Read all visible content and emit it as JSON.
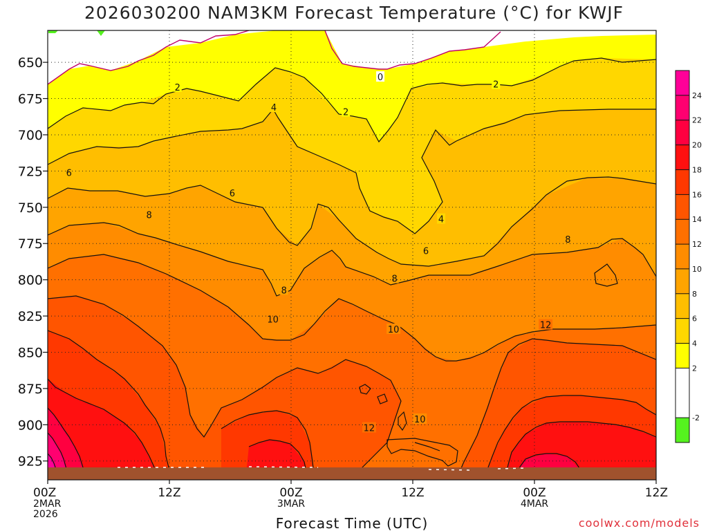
{
  "title": "2026030200 NAM3KM Forecast Temperature (°C) for KWJF",
  "credit": "coolwx.com/models",
  "chart_data": {
    "type": "heatmap",
    "title": "2026030200 NAM3KM Forecast Temperature (°C) for KWJF",
    "xlabel": "Forecast Time (UTC)",
    "ylabel": "",
    "x_ticks": [
      {
        "hours": 0,
        "lines": [
          "00Z",
          "2MAR",
          "2026"
        ]
      },
      {
        "hours": 12,
        "lines": [
          "12Z"
        ]
      },
      {
        "hours": 24,
        "lines": [
          "00Z",
          "3MAR"
        ]
      },
      {
        "hours": 36,
        "lines": [
          "12Z"
        ]
      },
      {
        "hours": 48,
        "lines": [
          "00Z",
          "4MAR"
        ]
      },
      {
        "hours": 60,
        "lines": [
          "12Z"
        ]
      }
    ],
    "xlim": [
      0,
      60
    ],
    "y_ticks": [
      650,
      675,
      700,
      725,
      750,
      775,
      800,
      825,
      850,
      875,
      900,
      925
    ],
    "ylim": [
      628,
      938
    ],
    "grid": true,
    "colorbar": {
      "labels": [
        "-2",
        "2",
        "4",
        "6",
        "8",
        "10",
        "12",
        "14",
        "16",
        "18",
        "20",
        "22",
        "24"
      ],
      "bands": [
        {
          "from": -4,
          "to": -2,
          "color": "#55f21f"
        },
        {
          "from": -2,
          "to": 2,
          "color": "#ffffff"
        },
        {
          "from": 2,
          "to": 4,
          "color": "#ffff00"
        },
        {
          "from": 4,
          "to": 6,
          "color": "#ffd700"
        },
        {
          "from": 6,
          "to": 8,
          "color": "#ffbe00"
        },
        {
          "from": 8,
          "to": 10,
          "color": "#ffa400"
        },
        {
          "from": 10,
          "to": 12,
          "color": "#ff8c00"
        },
        {
          "from": 12,
          "to": 14,
          "color": "#ff7000"
        },
        {
          "from": 14,
          "to": 16,
          "color": "#ff5500"
        },
        {
          "from": 16,
          "to": 18,
          "color": "#ff3800"
        },
        {
          "from": 18,
          "to": 20,
          "color": "#ff1010"
        },
        {
          "from": 20,
          "to": 22,
          "color": "#ff0040"
        },
        {
          "from": 22,
          "to": 24,
          "color": "#ff0070"
        },
        {
          "from": 24,
          "to": 26,
          "color": "#ff0098"
        }
      ]
    },
    "ground_color": "#a0522d",
    "contour_labels": [
      {
        "text": "0",
        "hours": 32.8,
        "pressure": 660
      },
      {
        "text": "2",
        "hours": 12.8,
        "pressure": 667
      },
      {
        "text": "2",
        "hours": 29.4,
        "pressure": 684
      },
      {
        "text": "2",
        "hours": 44.2,
        "pressure": 665
      },
      {
        "text": "4",
        "hours": 22.3,
        "pressure": 681
      },
      {
        "text": "4",
        "hours": 38.8,
        "pressure": 758
      },
      {
        "text": "6",
        "hours": 2.1,
        "pressure": 726
      },
      {
        "text": "6",
        "hours": 18.2,
        "pressure": 740
      },
      {
        "text": "6",
        "hours": 37.3,
        "pressure": 780
      },
      {
        "text": "8",
        "hours": 10.0,
        "pressure": 755
      },
      {
        "text": "8",
        "hours": 34.2,
        "pressure": 799
      },
      {
        "text": "8",
        "hours": 23.3,
        "pressure": 807
      },
      {
        "text": "8",
        "hours": 51.3,
        "pressure": 772
      },
      {
        "text": "10",
        "hours": 22.2,
        "pressure": 827
      },
      {
        "text": "10",
        "hours": 34.1,
        "pressure": 834
      },
      {
        "text": "10",
        "hours": 36.7,
        "pressure": 896
      },
      {
        "text": "12",
        "hours": 31.7,
        "pressure": 902
      },
      {
        "text": "12",
        "hours": 49.1,
        "pressure": 831
      }
    ]
  }
}
